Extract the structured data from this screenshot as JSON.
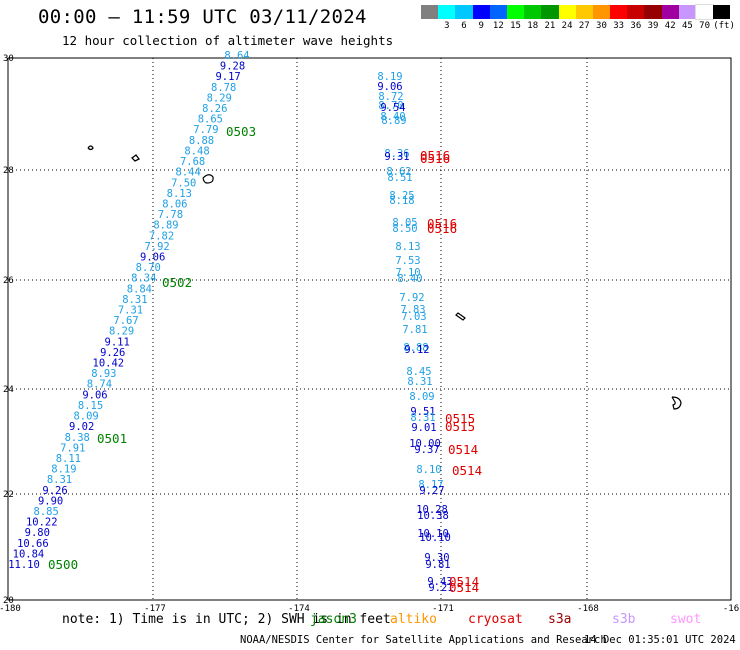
{
  "header": {
    "title": "00:00 — 11:59 UTC 03/11/2024",
    "subtitle": "12 hour collection of altimeter wave heights"
  },
  "scale": {
    "colors": [
      "#808080",
      "#00ffff",
      "#00c8ff",
      "#0000ff",
      "#0064ff",
      "#00ff00",
      "#00c800",
      "#009600",
      "#ffff00",
      "#ffc800",
      "#ff9600",
      "#ff0000",
      "#c80000",
      "#960000",
      "#a000a0",
      "#c896ff",
      "#ffffff",
      "#000000"
    ],
    "labels": [
      "",
      "3",
      "6",
      "9",
      "12",
      "15",
      "18",
      "21",
      "24",
      "27",
      "30",
      "33",
      "36",
      "39",
      "42",
      "45",
      "70",
      "(ft)"
    ]
  },
  "map": {
    "lat_labels": [
      "30",
      "28",
      "26",
      "24",
      "22",
      "20"
    ],
    "lon_labels": [
      "-180",
      "-177",
      "-174",
      "-171",
      "-168",
      "-16"
    ],
    "colors": {
      "dark": "#0000cc",
      "light": "#1ea0e6",
      "pass": "#008000",
      "red": "#e00000"
    },
    "track1": [
      {
        "v": "8.64",
        "c": "light"
      },
      {
        "v": "9.28",
        "c": "dark"
      },
      {
        "v": "9.17",
        "c": "dark"
      },
      {
        "v": "8.78",
        "c": "light"
      },
      {
        "v": "8.29",
        "c": "light"
      },
      {
        "v": "8.26",
        "c": "light"
      },
      {
        "v": "8.65",
        "c": "light"
      },
      {
        "v": "7.79",
        "c": "light"
      },
      {
        "v": "8.88",
        "c": "light"
      },
      {
        "v": "8.48",
        "c": "light"
      },
      {
        "v": "7.68",
        "c": "light"
      },
      {
        "v": "8.44",
        "c": "light"
      },
      {
        "v": "7.50",
        "c": "light"
      },
      {
        "v": "8.13",
        "c": "light"
      },
      {
        "v": "8.06",
        "c": "light"
      },
      {
        "v": "7.78",
        "c": "light"
      },
      {
        "v": "8.89",
        "c": "light"
      },
      {
        "v": "7.82",
        "c": "light"
      },
      {
        "v": "7.92",
        "c": "light"
      },
      {
        "v": "9.06",
        "c": "dark"
      },
      {
        "v": "8.70",
        "c": "light"
      },
      {
        "v": "8.34",
        "c": "light"
      },
      {
        "v": "8.84",
        "c": "light"
      },
      {
        "v": "8.31",
        "c": "light"
      },
      {
        "v": "7.31",
        "c": "light"
      },
      {
        "v": "7.67",
        "c": "light"
      },
      {
        "v": "8.29",
        "c": "light"
      },
      {
        "v": "9.11",
        "c": "dark"
      },
      {
        "v": "9.26",
        "c": "dark"
      },
      {
        "v": "10.42",
        "c": "dark"
      },
      {
        "v": "8.93",
        "c": "light"
      },
      {
        "v": "8.74",
        "c": "light"
      },
      {
        "v": "9.06",
        "c": "dark"
      },
      {
        "v": "8.15",
        "c": "light"
      },
      {
        "v": "8.09",
        "c": "light"
      },
      {
        "v": "9.02",
        "c": "dark"
      },
      {
        "v": "8.38",
        "c": "light"
      },
      {
        "v": "7.91",
        "c": "light"
      },
      {
        "v": "8.11",
        "c": "light"
      },
      {
        "v": "8.19",
        "c": "light"
      },
      {
        "v": "8.31",
        "c": "light"
      },
      {
        "v": "9.26",
        "c": "dark"
      },
      {
        "v": "9.90",
        "c": "dark"
      },
      {
        "v": "8.85",
        "c": "light"
      },
      {
        "v": "10.22",
        "c": "dark"
      },
      {
        "v": "9.80",
        "c": "dark"
      },
      {
        "v": "10.66",
        "c": "dark"
      },
      {
        "v": "10.84",
        "c": "dark"
      },
      {
        "v": "11.10",
        "c": "dark"
      }
    ],
    "track1_pass_labels": [
      "0503",
      "0502",
      "0501",
      "0500"
    ],
    "track2": [
      {
        "v": "8.19",
        "c": "light"
      },
      {
        "v": "9.06",
        "c": "dark"
      },
      {
        "v": "8.72",
        "c": "light"
      },
      {
        "v": "8.70",
        "c": "light"
      },
      {
        "v": "9.54",
        "c": "dark"
      },
      {
        "v": "8.40",
        "c": "light"
      },
      {
        "v": "8.89",
        "c": "light"
      },
      {
        "v": "8.36",
        "c": "light"
      },
      {
        "v": "9.31",
        "c": "dark"
      },
      {
        "v": "8.62",
        "c": "light"
      },
      {
        "v": "8.51",
        "c": "light"
      },
      {
        "v": "8.25",
        "c": "light"
      },
      {
        "v": "8.18",
        "c": "light"
      },
      {
        "v": "8.05",
        "c": "light"
      },
      {
        "v": "8.50",
        "c": "light"
      },
      {
        "v": "8.13",
        "c": "light"
      },
      {
        "v": "7.53",
        "c": "light"
      },
      {
        "v": "7.10",
        "c": "light"
      },
      {
        "v": "8.40",
        "c": "light"
      },
      {
        "v": "7.92",
        "c": "light"
      },
      {
        "v": "7.83",
        "c": "light"
      },
      {
        "v": "7.03",
        "c": "light"
      },
      {
        "v": "7.81",
        "c": "light"
      },
      {
        "v": "8.88",
        "c": "light"
      },
      {
        "v": "9.12",
        "c": "dark"
      },
      {
        "v": "8.45",
        "c": "light"
      },
      {
        "v": "8.31",
        "c": "light"
      },
      {
        "v": "8.09",
        "c": "light"
      },
      {
        "v": "9.51",
        "c": "dark"
      },
      {
        "v": "8.31",
        "c": "light"
      },
      {
        "v": "9.01",
        "c": "dark"
      },
      {
        "v": "10.00",
        "c": "dark"
      },
      {
        "v": "9.37",
        "c": "dark"
      },
      {
        "v": "8.10",
        "c": "light"
      },
      {
        "v": "8.17",
        "c": "light"
      },
      {
        "v": "9.27",
        "c": "dark"
      },
      {
        "v": "10.28",
        "c": "dark"
      },
      {
        "v": "10.38",
        "c": "dark"
      },
      {
        "v": "10.10",
        "c": "dark"
      },
      {
        "v": "10.10",
        "c": "dark"
      },
      {
        "v": "9.30",
        "c": "dark"
      },
      {
        "v": "9.81",
        "c": "dark"
      },
      {
        "v": "9.43",
        "c": "dark"
      },
      {
        "v": "9.21",
        "c": "dark"
      }
    ],
    "track2_pass_labels": [
      "0516",
      "0516",
      "0516",
      "0516",
      "0515",
      "0515",
      "0514",
      "0514",
      "0514",
      "0514"
    ]
  },
  "footer": {
    "note": "note: 1) Time is in UTC; 2) SWH is in feet",
    "legend": [
      {
        "name": "jason3",
        "color": "#008000"
      },
      {
        "name": "altiko",
        "color": "#ff9600"
      },
      {
        "name": "cryosat",
        "color": "#e00000"
      },
      {
        "name": "s3a",
        "color": "#960000"
      },
      {
        "name": "s3b",
        "color": "#c896ff"
      },
      {
        "name": "swot",
        "color": "#ff96ff"
      }
    ],
    "credit": "NOAA/NESDIS Center for Satellite Applications and Research",
    "timestamp": "14 Dec 01:35:01 UTC 2024"
  }
}
